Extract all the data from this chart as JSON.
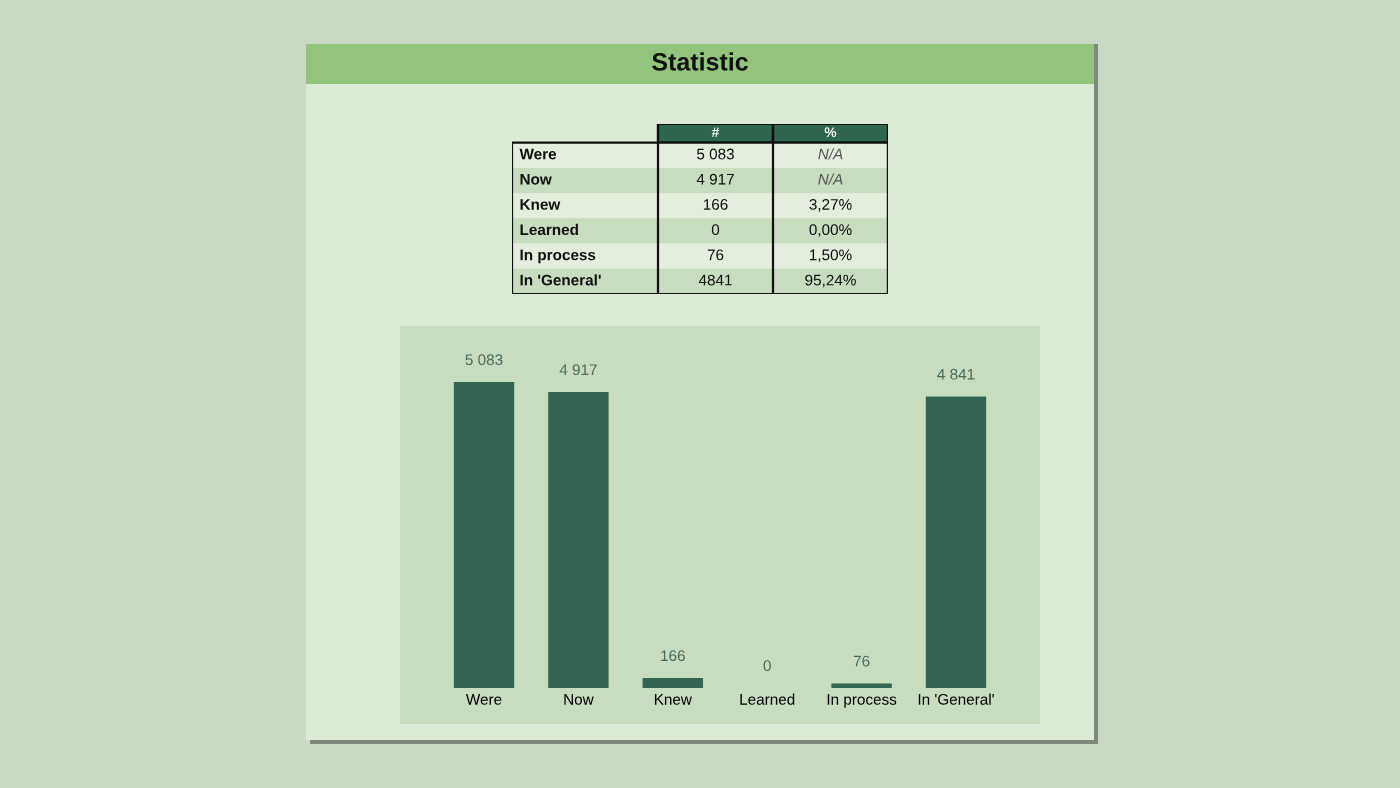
{
  "chart_data": [
    {
      "type": "other",
      "title": "Statistic",
      "categories": [
        "#",
        "%"
      ],
      "y_categories": [
        "Were",
        "Now",
        "Knew",
        "Learned",
        "In process",
        "In 'General'"
      ],
      "cell_labels": [
        [
          "5 083",
          "N/A"
        ],
        [
          "4 917",
          "N/A"
        ],
        [
          "166",
          "3,27%"
        ],
        [
          "0",
          "0,00%"
        ],
        [
          "76",
          "1,50%"
        ],
        [
          "4841",
          "95,24%"
        ]
      ]
    },
    {
      "type": "bar",
      "categories": [
        "Were",
        "Now",
        "Knew",
        "Learned",
        "In process",
        "In 'General'"
      ],
      "values": [
        5083,
        4917,
        166,
        0,
        76,
        4841
      ],
      "color": "#326652",
      "value_labels": [
        "5 083",
        "4 917",
        "166",
        "0",
        "76",
        "4 841"
      ]
    }
  ]
}
